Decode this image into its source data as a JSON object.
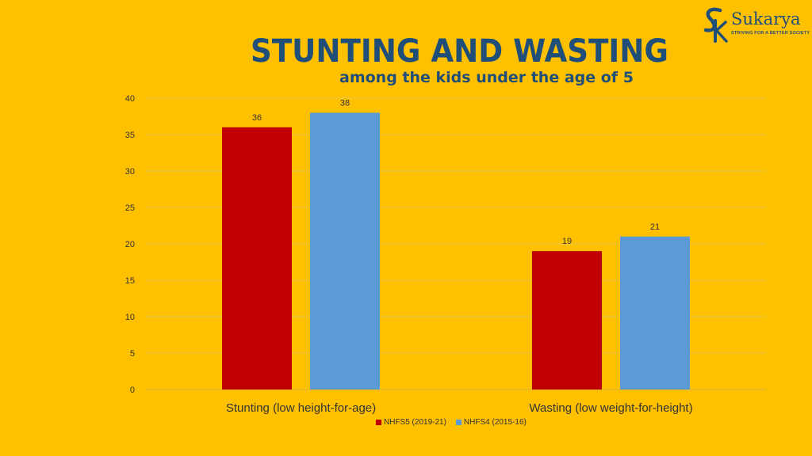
{
  "title": "STUNTING AND WASTING",
  "subtitle": "among the kids under the age of 5",
  "logo": {
    "monogram": "SK",
    "wordmark": "Sukarya",
    "tagline": "STRIVING FOR A BETTER SOCIETY"
  },
  "colors": {
    "background": "#FFC000",
    "title": "#1F4E79",
    "nhfs5": "#C00000",
    "nhfs4": "#5B9BD5",
    "grid": "#E6C35A"
  },
  "chart_data": {
    "type": "bar",
    "categories": [
      "Stunting (low height-for-age)",
      "Wasting (low weight-for-height)"
    ],
    "series": [
      {
        "name": "NHFS5 (2019-21)",
        "values": [
          36,
          19
        ]
      },
      {
        "name": "NHFS4 (2015-16)",
        "values": [
          38,
          21
        ]
      }
    ],
    "yticks": [
      "0",
      "5",
      "10",
      "15",
      "20",
      "25",
      "30",
      "35",
      "40"
    ],
    "ylim": [
      0,
      40
    ],
    "grid": true,
    "legend_position": "bottom",
    "data_labels": true
  }
}
